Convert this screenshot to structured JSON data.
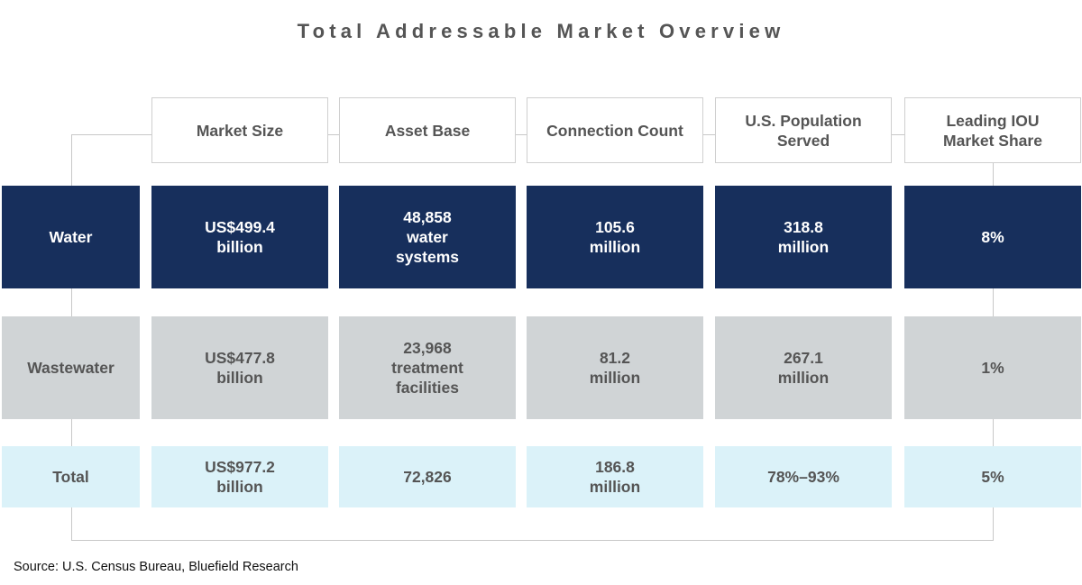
{
  "title": "Total Addressable Market Overview",
  "source": "Source: U.S. Census Bureau, Bluefield Research",
  "colors": {
    "water": "#172f5c",
    "wastewater": "#d0d4d6",
    "total": "#dbf2f9",
    "header_border": "#cfcfcf",
    "text_gray": "#555555"
  },
  "chart_data": {
    "type": "table",
    "title": "Total Addressable Market Overview",
    "columns": [
      "Market Size",
      "Asset Base",
      "Connection Count",
      "U.S. Population\nServed",
      "Leading IOU\nMarket Share"
    ],
    "rows": [
      {
        "label": "Water",
        "cells": [
          "US$499.4\nbillion",
          "48,858\nwater\nsystems",
          "105.6\nmillion",
          "318.8\nmillion",
          "8%"
        ]
      },
      {
        "label": "Wastewater",
        "cells": [
          "US$477.8\nbillion",
          "23,968\ntreatment\nfacilities",
          "81.2\nmillion",
          "267.1\nmillion",
          "1%"
        ]
      },
      {
        "label": "Total",
        "cells": [
          "US$977.2\nbillion",
          "72,826",
          "186.8\nmillion",
          "78%–93%",
          "5%"
        ]
      }
    ]
  }
}
